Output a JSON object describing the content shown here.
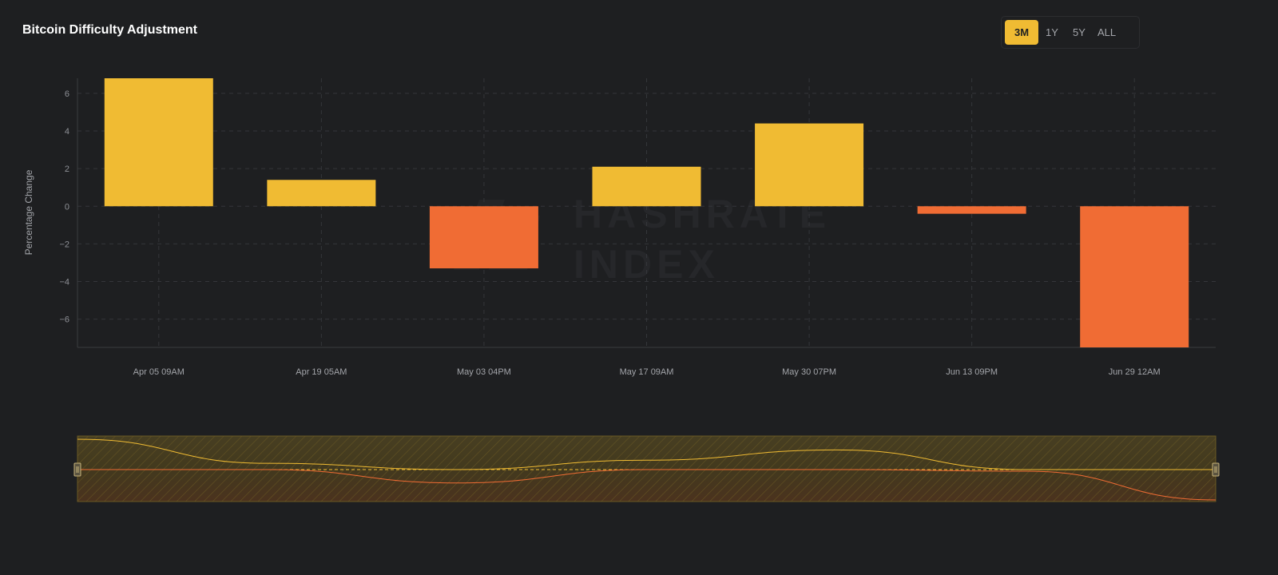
{
  "header": {
    "title": "Bitcoin Difficulty Adjustment"
  },
  "range_buttons": [
    {
      "label": "3M",
      "active": true
    },
    {
      "label": "1Y",
      "active": false
    },
    {
      "label": "5Y",
      "active": false
    },
    {
      "label": "ALL",
      "active": false
    }
  ],
  "watermark": {
    "line1": "HASHRATE",
    "line2": "INDEX"
  },
  "colors": {
    "positive": "#f0bb33",
    "negative": "#f06c34",
    "background": "#1e1f21",
    "grid": "#34363a"
  },
  "chart_data": {
    "type": "bar",
    "title": "Bitcoin Difficulty Adjustment",
    "xlabel": "",
    "ylabel": "Percentage Change",
    "categories": [
      "Apr 05 09AM",
      "Apr 19 05AM",
      "May 03 04PM",
      "May 17 09AM",
      "May 30 07PM",
      "Jun 13 09PM",
      "Jun 29 12AM"
    ],
    "values": [
      6.8,
      1.4,
      -3.3,
      2.1,
      4.4,
      -0.4,
      -7.5
    ],
    "yticks": [
      6,
      4,
      2,
      0,
      -2,
      -4,
      -6
    ],
    "ylim": [
      -7.5,
      6.8
    ],
    "grid": true,
    "navigator": true
  }
}
